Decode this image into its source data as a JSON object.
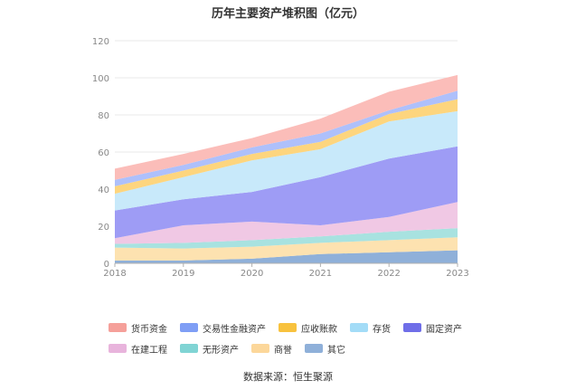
{
  "title": "历年主要资产堆积图（亿元）",
  "source_text": "数据来源：恒生聚源",
  "chart_data": {
    "type": "area",
    "stacked": true,
    "title": "历年主要资产堆积图（亿元）",
    "unit": "亿元",
    "categories": [
      "2018",
      "2019",
      "2020",
      "2021",
      "2022",
      "2023"
    ],
    "ylim": [
      0,
      120
    ],
    "yticks": [
      0,
      20,
      40,
      60,
      80,
      100,
      120
    ],
    "grid": true,
    "legend_position": "bottom",
    "series": [
      {
        "name": "其它",
        "color": "#8fb0d9",
        "values": [
          1.5,
          1.5,
          2.5,
          5.0,
          6.0,
          7.0
        ]
      },
      {
        "name": "商誉",
        "color": "#fde2b0",
        "values": [
          7.0,
          6.5,
          6.5,
          6.0,
          6.5,
          7.0
        ]
      },
      {
        "name": "无形资产",
        "color": "#a8e2e0",
        "values": [
          2.0,
          3.0,
          3.5,
          3.5,
          4.5,
          5.0
        ]
      },
      {
        "name": "在建工程",
        "color": "#f0c8e4",
        "values": [
          3.0,
          9.5,
          10.0,
          6.0,
          8.0,
          14.0
        ]
      },
      {
        "name": "固定资产",
        "color": "#9e9cf5",
        "values": [
          15.0,
          14.0,
          16.0,
          26.0,
          31.5,
          30.0
        ]
      },
      {
        "name": "存货",
        "color": "#c8e9fa",
        "values": [
          9.0,
          12.0,
          17.0,
          15.0,
          20.0,
          19.0
        ]
      },
      {
        "name": "应收账款",
        "color": "#fdd57e",
        "values": [
          4.0,
          3.5,
          3.5,
          4.0,
          4.0,
          6.5
        ]
      },
      {
        "name": "交易性金融资产",
        "color": "#aec0fb",
        "values": [
          3.5,
          3.0,
          3.5,
          4.5,
          2.0,
          4.5
        ]
      },
      {
        "name": "货币资金",
        "color": "#fbbdb9",
        "values": [
          6.0,
          6.0,
          5.0,
          8.0,
          10.0,
          8.5
        ]
      }
    ]
  },
  "legend_order": [
    "货币资金",
    "交易性金融资产",
    "应收账款",
    "存货",
    "固定资产",
    "在建工程",
    "无形资产",
    "商誉",
    "其它"
  ],
  "legend_colors": {
    "货币资金": "#f5a09a",
    "交易性金融资产": "#7f9ef5",
    "应收账款": "#f8c23e",
    "存货": "#a3dcf7",
    "固定资产": "#6f6ee8",
    "在建工程": "#e8b4dc",
    "无形资产": "#80d4d4",
    "商誉": "#fcd79a",
    "其它": "#8fb0d9"
  }
}
